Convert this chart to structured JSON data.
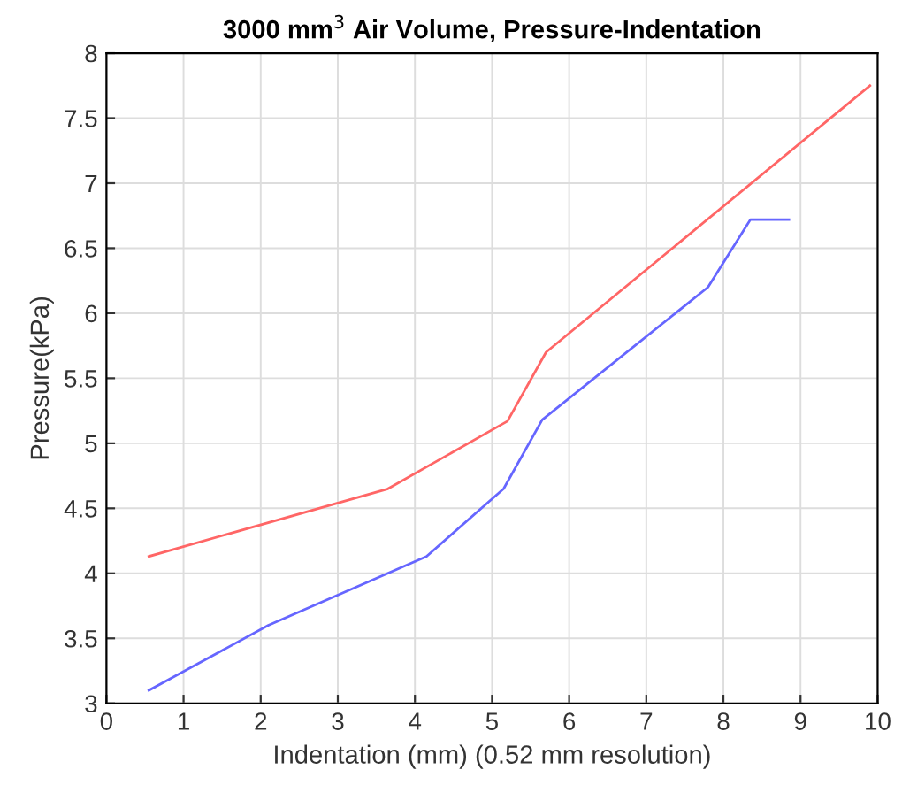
{
  "chart_data": {
    "type": "line",
    "title": "3000 mm$^{3}$ Air Volume, Pressure-Indentation",
    "xlabel": "Indentation (mm) (0.52 mm resolution)",
    "ylabel": "Pressure(kPa)",
    "series": [
      {
        "color": "#ff6666",
        "x": [
          0.55,
          3.65,
          5.2,
          5.7,
          9.9
        ],
        "values": [
          4.13,
          4.65,
          5.17,
          5.7,
          7.75
        ]
      },
      {
        "color": "#6666ff",
        "x": [
          0.55,
          2.1,
          4.15,
          5.15,
          5.65,
          7.8,
          8.35,
          8.85
        ],
        "values": [
          3.1,
          3.6,
          4.13,
          4.65,
          5.18,
          6.2,
          6.72,
          6.72
        ]
      }
    ],
    "xlim": [
      0,
      10
    ],
    "ylim": [
      3,
      8
    ],
    "xticks": [
      0,
      1,
      2,
      3,
      4,
      5,
      6,
      7,
      8,
      9,
      10
    ],
    "yticks": [
      3,
      3.5,
      4,
      4.5,
      5,
      5.5,
      6,
      6.5,
      7,
      7.5,
      8
    ],
    "grid": true,
    "marker": "none",
    "line_style": "solid"
  }
}
